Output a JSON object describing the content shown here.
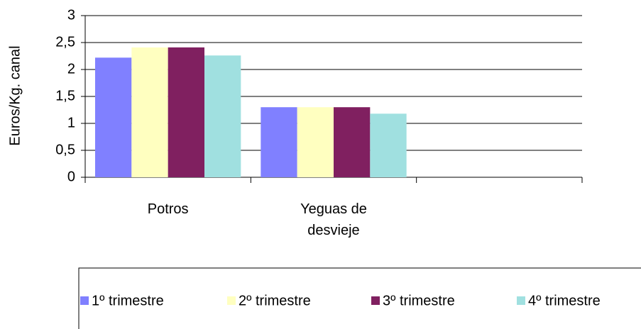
{
  "chart_data": {
    "type": "bar",
    "y_label": "Euros/Kg. canal",
    "categories": [
      "Potros",
      "Yeguas de desvieje",
      null
    ],
    "series": [
      {
        "name": "1º trimestre",
        "color": "#8080ff",
        "values": [
          2.22,
          1.3,
          null
        ]
      },
      {
        "name": "2º trimestre",
        "color": "#ffffc0",
        "values": [
          2.41,
          1.3,
          null
        ]
      },
      {
        "name": "3º trimestre",
        "color": "#802060",
        "values": [
          2.41,
          1.3,
          null
        ]
      },
      {
        "name": "4º trimestre",
        "color": "#a0e0e0",
        "values": [
          2.26,
          1.18,
          null
        ]
      }
    ],
    "ylim": [
      0,
      3
    ],
    "yticks": [
      0,
      {
        "value": 0.5,
        "label": "0,5"
      },
      1,
      {
        "value": 1.5,
        "label": "1,5"
      },
      2,
      {
        "value": 2.5,
        "label": "2,5"
      },
      3
    ],
    "grid": true,
    "legend": "bottom"
  }
}
